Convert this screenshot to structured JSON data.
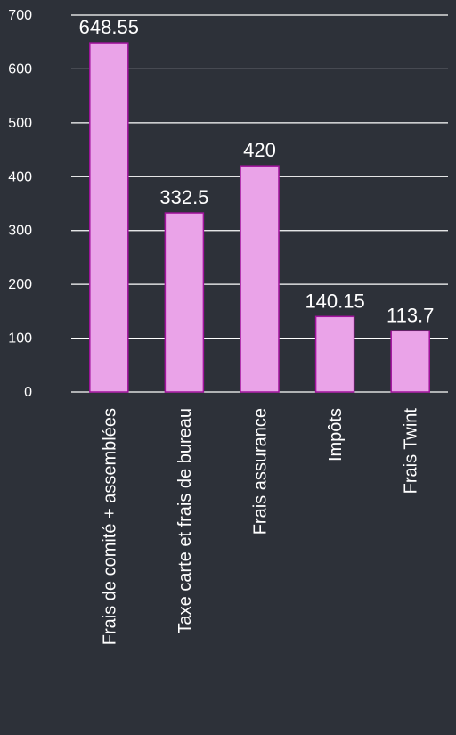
{
  "chart_data": {
    "type": "bar",
    "categories": [
      "Frais de comité + assemblées",
      "Taxe carte et frais de bureau",
      "Frais assurance",
      "Impôts",
      "Frais Twint"
    ],
    "values": [
      648.55,
      332.5,
      420,
      140.15,
      113.7
    ],
    "data_labels": [
      "648.55",
      "332.5",
      "420",
      "140.15",
      "113.7"
    ],
    "y_ticks": [
      0,
      100,
      200,
      300,
      400,
      500,
      600,
      700
    ],
    "ylim": [
      0,
      700
    ],
    "grid": true,
    "legend": "none",
    "title": "",
    "xlabel": "",
    "ylabel": "",
    "colors": {
      "background": "#2d3139",
      "bar_fill": "#eaa3e8",
      "bar_stroke": "#a3139e",
      "text": "#ffffff",
      "grid": "#ffffff"
    }
  }
}
